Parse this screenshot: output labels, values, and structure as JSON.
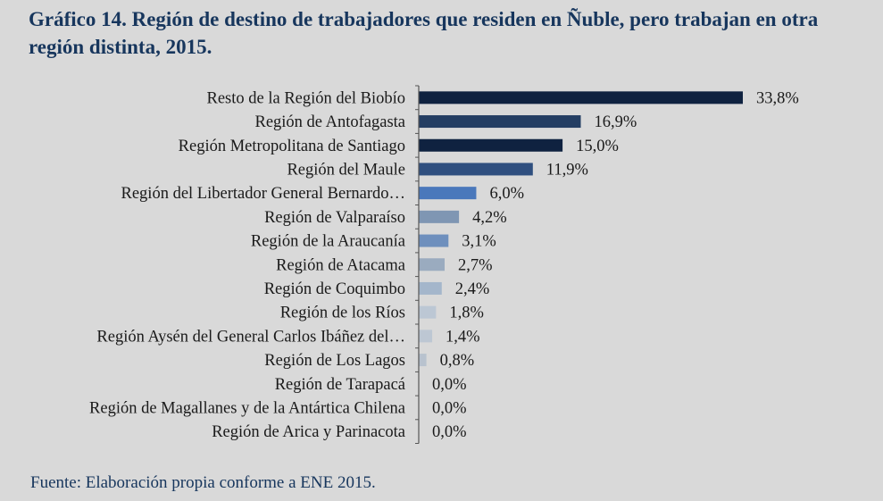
{
  "title": "Gráfico 14. Región de destino de trabajadores que residen en Ñuble, pero trabajan en otra región distinta, 2015.",
  "source": "Fuente: Elaboración propia conforme a ENE 2015.",
  "chart_data": {
    "type": "bar",
    "orientation": "horizontal",
    "title": "Gráfico 14. Región de destino de trabajadores que residen en Ñuble, pero trabajan en otra región distinta, 2015.",
    "categories": [
      "Resto de la Región del Biobío",
      "Región de Antofagasta",
      "Región Metropolitana de Santiago",
      "Región del Maule",
      "Región del Libertador General Bernardo…",
      "Región de Valparaíso",
      "Región de la Araucanía",
      "Región de Atacama",
      "Región de Coquimbo",
      "Región de los Ríos",
      "Región Aysén del General Carlos Ibáñez del…",
      "Región de Los Lagos",
      "Región de Tarapacá",
      "Región de Magallanes y de la Antártica Chilena",
      "Región de Arica y Parinacota"
    ],
    "values": [
      33.8,
      16.9,
      15.0,
      11.9,
      6.0,
      4.2,
      3.1,
      2.7,
      2.4,
      1.8,
      1.4,
      0.8,
      0.0,
      0.0,
      0.0
    ],
    "value_labels": [
      "33,8%",
      "16,9%",
      "15,0%",
      "11,9%",
      "6,0%",
      "4,2%",
      "3,1%",
      "2,7%",
      "2,4%",
      "1,8%",
      "1,4%",
      "0,8%",
      "0,0%",
      "0,0%",
      "0,0%"
    ],
    "colors": [
      "#0f2240",
      "#243e63",
      "#0f2240",
      "#2f4f7f",
      "#4a78bb",
      "#7f96b3",
      "#6e8fbd",
      "#9aabbf",
      "#a4b6cb",
      "#bcc7d4",
      "#bdc7d3",
      "#b8c2ce",
      "#c4ccd6",
      "#c4ccd6",
      "#c4ccd6"
    ],
    "xlim": [
      0,
      33.8
    ],
    "grid": false,
    "legend": "none"
  }
}
